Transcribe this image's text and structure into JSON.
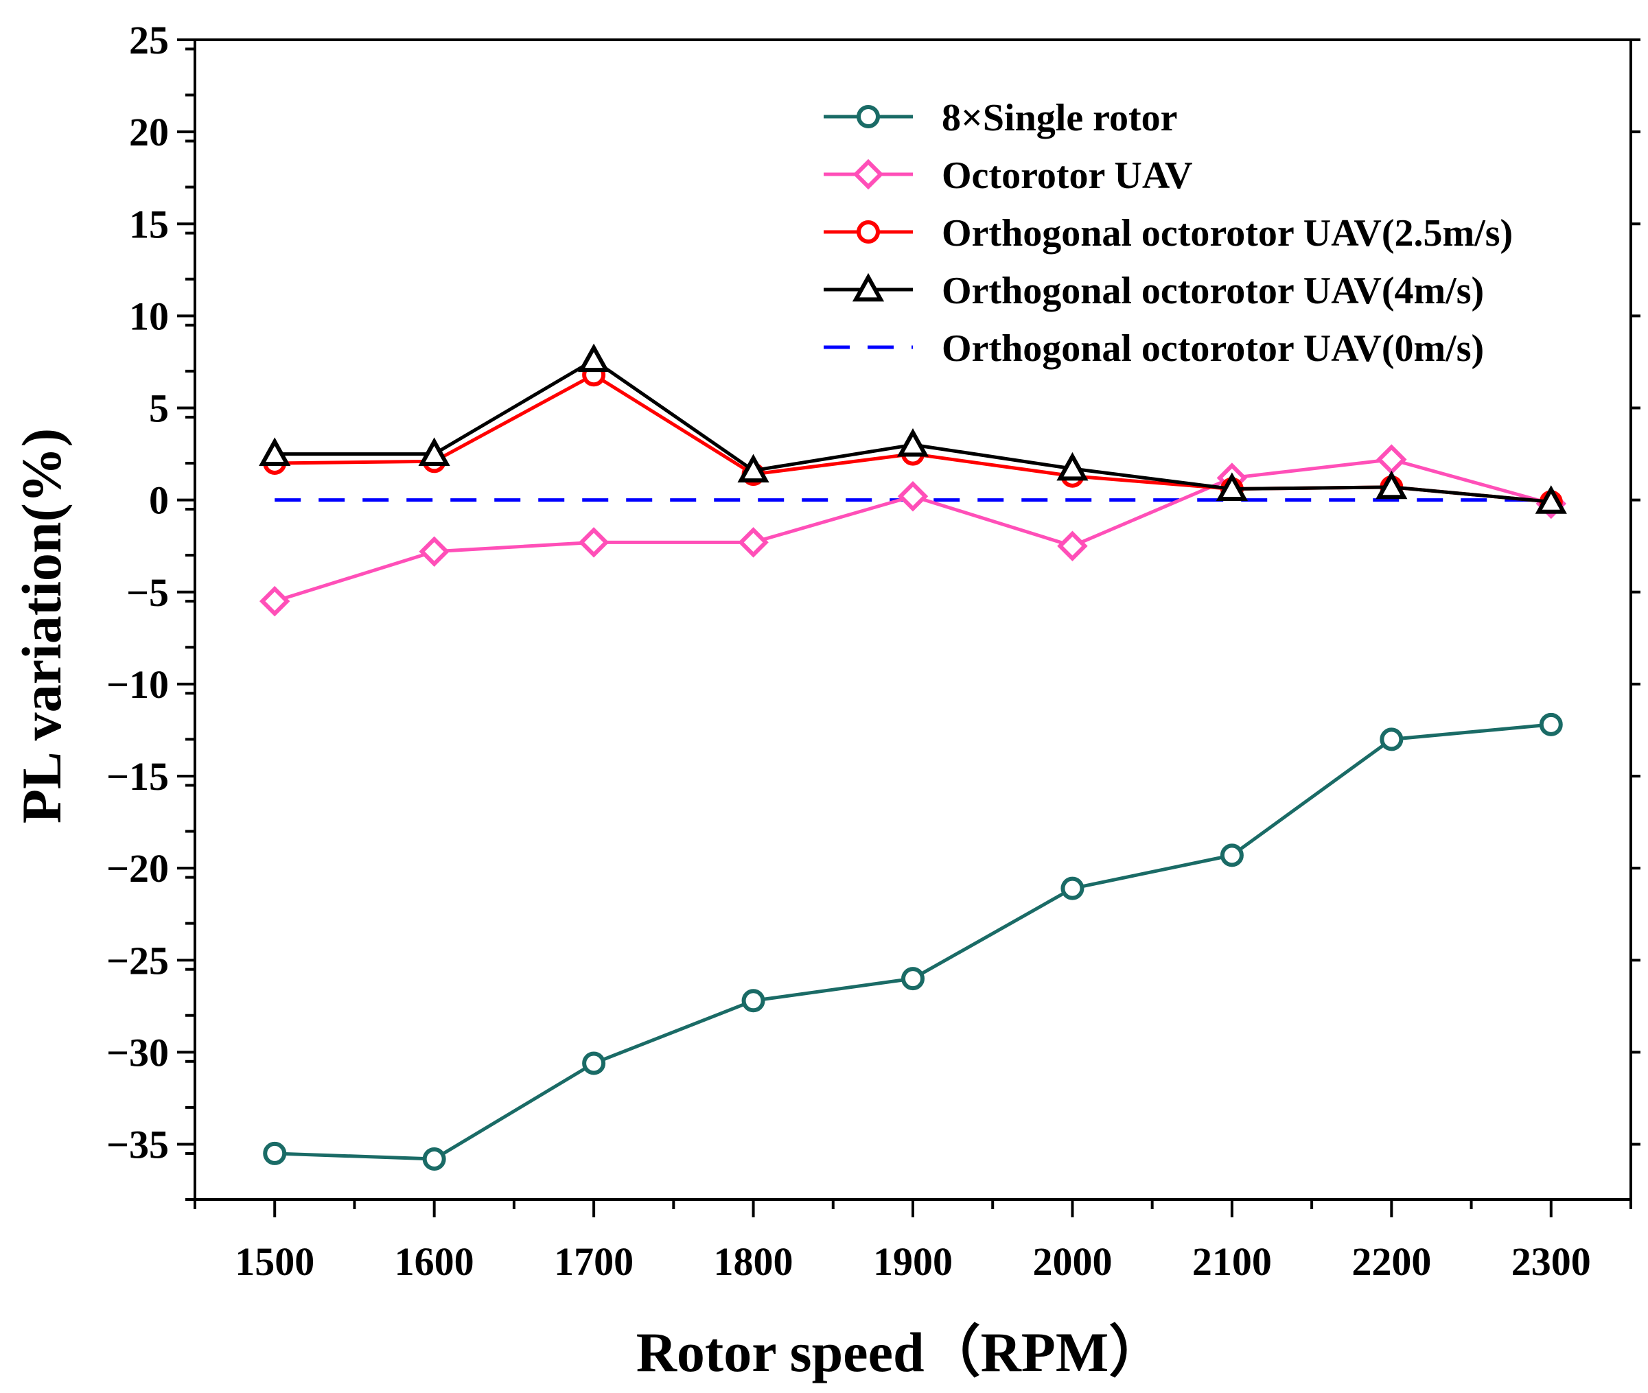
{
  "chart_data": {
    "type": "line",
    "xlabel": "Rotor speed（RPM）",
    "ylabel": "PL variation(%)",
    "xlim": [
      1450,
      2350
    ],
    "ylim": [
      -38,
      25
    ],
    "x": [
      1500,
      1600,
      1700,
      1800,
      1900,
      2000,
      2100,
      2200,
      2300
    ],
    "x_ticks": [
      "1500",
      "1600",
      "1700",
      "1800",
      "1900",
      "2000",
      "2100",
      "2200",
      "2300"
    ],
    "y_ticks": [
      "25",
      "20",
      "15",
      "10",
      "5",
      "0",
      "−5",
      "−10",
      "−15",
      "−20",
      "−25",
      "−30",
      "−35"
    ],
    "y_tick_values": [
      25,
      20,
      15,
      10,
      5,
      0,
      -5,
      -10,
      -15,
      -20,
      -25,
      -30,
      -35
    ],
    "grid": false,
    "legend_position": "top-right",
    "series": [
      {
        "name": "8×Single rotor",
        "color": "#1a6b66",
        "marker": "circle",
        "dashed": false,
        "values": [
          -35.5,
          -35.8,
          -30.6,
          -27.2,
          -26.0,
          -21.1,
          -19.3,
          -13.0,
          -12.2
        ]
      },
      {
        "name": "Octorotor UAV",
        "color": "#ff4fb8",
        "marker": "diamond",
        "dashed": false,
        "values": [
          -5.5,
          -2.8,
          -2.3,
          -2.3,
          0.2,
          -2.5,
          1.2,
          2.2,
          -0.2
        ]
      },
      {
        "name": "Orthogonal octorotor UAV(2.5m/s)",
        "color": "#ff0000",
        "marker": "circle",
        "dashed": false,
        "values": [
          2.0,
          2.1,
          6.8,
          1.4,
          2.5,
          1.3,
          0.6,
          0.7,
          -0.1
        ]
      },
      {
        "name": "Orthogonal octorotor UAV(4m/s)",
        "color": "#000000",
        "marker": "triangle",
        "dashed": false,
        "values": [
          2.5,
          2.5,
          7.6,
          1.6,
          3.0,
          1.7,
          0.6,
          0.7,
          -0.1
        ]
      },
      {
        "name": "Orthogonal octorotor UAV(0m/s)",
        "color": "#0000ff",
        "marker": "none",
        "dashed": true,
        "values": [
          0,
          0,
          0,
          0,
          0,
          0,
          0,
          0,
          0
        ]
      }
    ]
  }
}
